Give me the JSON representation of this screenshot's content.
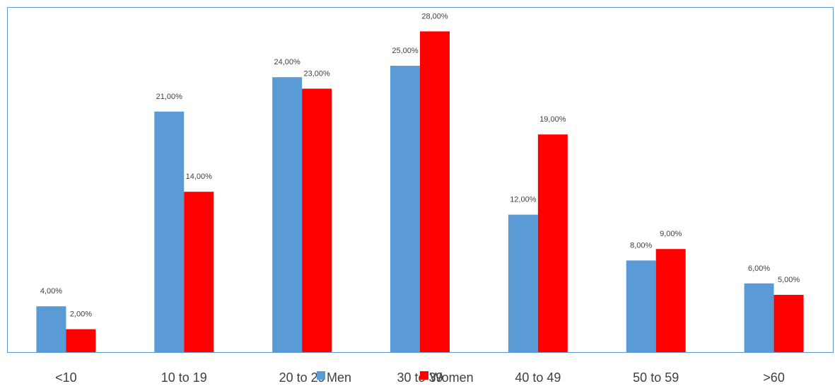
{
  "chart_data": {
    "type": "bar",
    "categories": [
      "<10",
      "10 to 19",
      "20 to 29",
      "30 to 39",
      "40 to 49",
      "50 to 59",
      ">60"
    ],
    "series": [
      {
        "name": "Men",
        "color": "#5b9bd5",
        "values": [
          4,
          21,
          24,
          25,
          12,
          8,
          6
        ],
        "labels": [
          "4,00%",
          "21,00%",
          "24,00%",
          "25,00%",
          "12,00%",
          "8,00%",
          "6,00%"
        ]
      },
      {
        "name": "Women",
        "color": "#ff0000",
        "values": [
          2,
          14,
          23,
          28,
          19,
          9,
          5
        ],
        "labels": [
          "2,00%",
          "14,00%",
          "23,00%",
          "28,00%",
          "19,00%",
          "9,00%",
          "5,00%"
        ]
      }
    ],
    "unit": "%",
    "ylim": [
      0,
      30
    ],
    "grid": false,
    "legend_position": "bottom-center",
    "frame_color": "#5b9bd5"
  }
}
